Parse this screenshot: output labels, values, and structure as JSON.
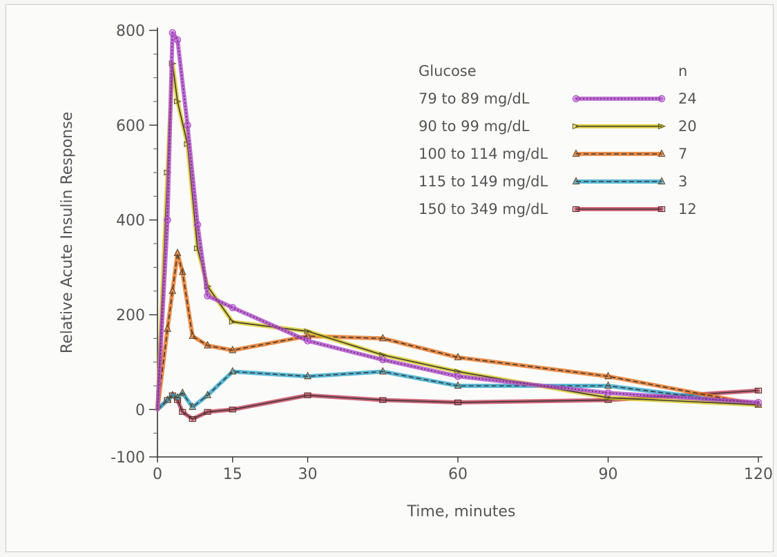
{
  "chart_data": {
    "type": "line",
    "title": "",
    "xlabel": "Time, minutes",
    "ylabel": "Relative Acute Insulin Response",
    "xlim": [
      0,
      120
    ],
    "ylim": [
      -100,
      800
    ],
    "x_ticks": [
      "0",
      "15",
      "30",
      "60",
      "90",
      "120"
    ],
    "x_tick_values": [
      0,
      15,
      30,
      60,
      90,
      120
    ],
    "y_ticks": [
      "800",
      "600",
      "400",
      "200",
      "0",
      "-100"
    ],
    "y_tick_values": [
      800,
      600,
      400,
      200,
      0,
      -100
    ],
    "grid": false,
    "legend_position": "top-right",
    "legend_title": "Glucose",
    "legend_n_header": "n",
    "series": [
      {
        "name": "79 to 89 mg/dL",
        "n": "24",
        "color": "#b04bc8",
        "dash": "dotted",
        "marker": "circle",
        "x": [
          0,
          2,
          3,
          4,
          6,
          8,
          10,
          15,
          30,
          45,
          60,
          90,
          120
        ],
        "y": [
          0,
          400,
          795,
          780,
          600,
          390,
          240,
          215,
          145,
          105,
          70,
          35,
          15
        ]
      },
      {
        "name": "90 to 99 mg/dL",
        "n": "20",
        "color": "#d8c81a",
        "dash": "solid",
        "marker": "arrow",
        "x": [
          0,
          2,
          3,
          4,
          6,
          8,
          10,
          15,
          30,
          45,
          60,
          90,
          120
        ],
        "y": [
          0,
          500,
          730,
          650,
          560,
          340,
          260,
          185,
          165,
          115,
          80,
          25,
          10
        ]
      },
      {
        "name": "100 to 114 mg/dL",
        "n": "7",
        "color": "#e8721c",
        "dash": "dashed",
        "marker": "triangle",
        "x": [
          0,
          2,
          3,
          4,
          5,
          7,
          10,
          15,
          30,
          45,
          60,
          90,
          120
        ],
        "y": [
          0,
          170,
          250,
          330,
          290,
          155,
          135,
          125,
          155,
          150,
          110,
          70,
          10
        ]
      },
      {
        "name": "115 to 149 mg/dL",
        "n": "3",
        "color": "#2ea8cc",
        "dash": "dashed",
        "marker": "triangle",
        "x": [
          0,
          2,
          3,
          4,
          5,
          7,
          10,
          15,
          30,
          45,
          60,
          90,
          120
        ],
        "y": [
          0,
          20,
          30,
          25,
          35,
          5,
          30,
          80,
          70,
          80,
          50,
          50,
          10
        ]
      },
      {
        "name": "150 to 349 mg/dL",
        "n": "12",
        "color": "#c8405a",
        "dash": "solid",
        "marker": "square",
        "x": [
          0,
          2,
          3,
          4,
          5,
          7,
          10,
          15,
          30,
          45,
          60,
          90,
          120
        ],
        "y": [
          0,
          20,
          30,
          20,
          -5,
          -20,
          -5,
          0,
          30,
          20,
          15,
          20,
          40
        ]
      }
    ]
  }
}
